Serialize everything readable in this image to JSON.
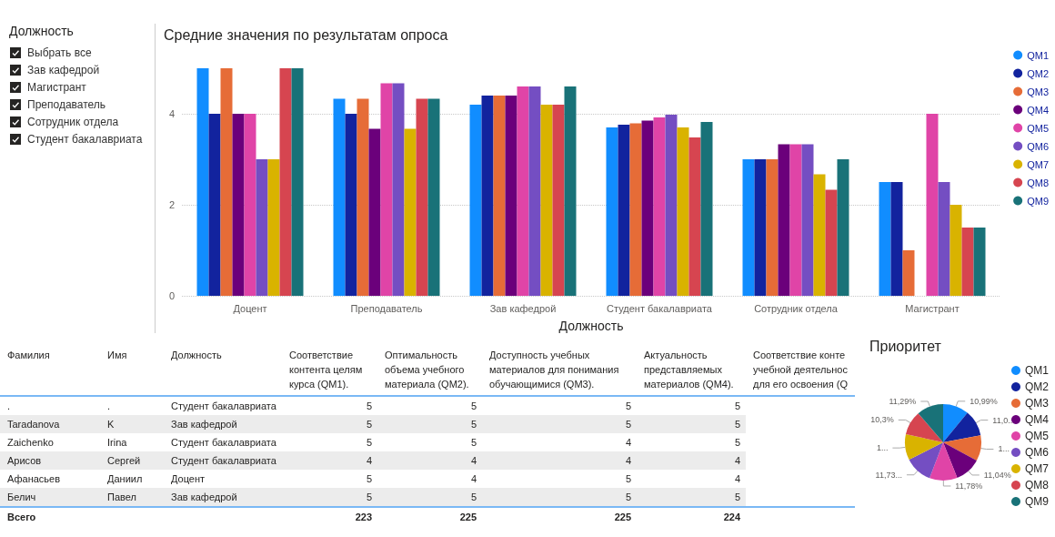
{
  "chart_data": [
    {
      "type": "other",
      "title": "Должность",
      "annotations": [
        "Выбрать все",
        "Зав кафедрой",
        "Магистрант",
        "Преподаватель",
        "Сотрудник отдела",
        "Студент бакалавриата"
      ]
    },
    {
      "type": "bar",
      "title": "Средние значения по результатам опроса",
      "xlabel": "Должность",
      "categories": [
        "Доцент",
        "Преподаватель",
        "Зав кафедрой",
        "Студент бакалавриата",
        "Сотрудник отдела",
        "Магистрант"
      ],
      "ylim": [
        0,
        5
      ],
      "yticks": [
        0,
        2,
        4
      ],
      "grid": "y",
      "legend": "right",
      "series": [
        {
          "name": "QM1",
          "color": "#118dff",
          "values": [
            5,
            4.33,
            4.2,
            3.7,
            3,
            2.5
          ]
        },
        {
          "name": "QM2",
          "color": "#12239e",
          "values": [
            4,
            4,
            4.4,
            3.76,
            3,
            2.5
          ]
        },
        {
          "name": "QM3",
          "color": "#e66c37",
          "values": [
            5,
            4.33,
            4.4,
            3.79,
            3,
            1
          ]
        },
        {
          "name": "QM4",
          "color": "#6b007b",
          "values": [
            4,
            3.67,
            4.4,
            3.85,
            3.33,
            null
          ]
        },
        {
          "name": "QM5",
          "color": "#e044a7",
          "values": [
            4,
            4.67,
            4.6,
            3.92,
            3.33,
            4
          ]
        },
        {
          "name": "QM6",
          "color": "#744ec2",
          "values": [
            3,
            4.67,
            4.6,
            3.98,
            3.33,
            2.5
          ]
        },
        {
          "name": "QM7",
          "color": "#d9b300",
          "values": [
            3,
            3.67,
            4.2,
            3.7,
            2.67,
            2
          ]
        },
        {
          "name": "QM8",
          "color": "#d64550",
          "values": [
            5,
            4.33,
            4.2,
            3.48,
            2.33,
            1.5
          ]
        },
        {
          "name": "QM9",
          "color": "#197278",
          "values": [
            5,
            4.33,
            4.6,
            3.82,
            3,
            1.5
          ]
        }
      ]
    },
    {
      "type": "other",
      "categories": [
        "Фамилия",
        "Имя",
        "Должность",
        "Соответствие контента целям курса (QM1).",
        "Оптимальность объема учебного материала (QM2).",
        "Доступность учебных материалов для понимания обучающимися (QM3).",
        "Актуальность представляемых материалов (QM4).",
        "Соответствие конте учебной деятельнос для его освоения (Q"
      ],
      "cell_labels": [
        [
          ".",
          ".",
          "Студент бакалавриата",
          "5",
          "5",
          "5",
          "5",
          null
        ],
        [
          "Taradanova",
          "K",
          "Зав кафедрой",
          "5",
          "5",
          "5",
          "5",
          null
        ],
        [
          "Zaichenko",
          "Irina",
          "Студент бакалавриата",
          "5",
          "5",
          "4",
          "5",
          null
        ],
        [
          "Арисов",
          "Сергей",
          "Студент бакалавриата",
          "4",
          "4",
          "4",
          "4",
          null
        ],
        [
          "Афанасьев",
          "Даниил",
          "Доцент",
          "5",
          "4",
          "5",
          "4",
          null
        ],
        [
          "Белич",
          "Павел",
          "Зав кафедрой",
          "5",
          "5",
          "5",
          "5",
          null
        ],
        [
          "Всего",
          null,
          null,
          "223",
          "225",
          "225",
          "224",
          null
        ]
      ]
    },
    {
      "type": "pie",
      "title": "Приоритет",
      "legend": "right",
      "categories": [
        "QM1",
        "QM2",
        "QM3",
        "QM4",
        "QM5",
        "QM6",
        "QM7",
        "QM8",
        "QM9"
      ],
      "values": [
        10.99,
        11.05,
        10.91,
        11.04,
        11.78,
        11.73,
        10.91,
        10.3,
        11.29
      ],
      "value_labels": [
        "10,99%",
        "11,0...",
        "1...",
        "11,04%",
        "11,78%",
        "11,73...",
        "1...",
        "10,3%",
        "11,29%"
      ],
      "colors": [
        "#118dff",
        "#12239e",
        "#e66c37",
        "#6b007b",
        "#e044a7",
        "#744ec2",
        "#d9b300",
        "#d64550",
        "#197278"
      ]
    }
  ]
}
